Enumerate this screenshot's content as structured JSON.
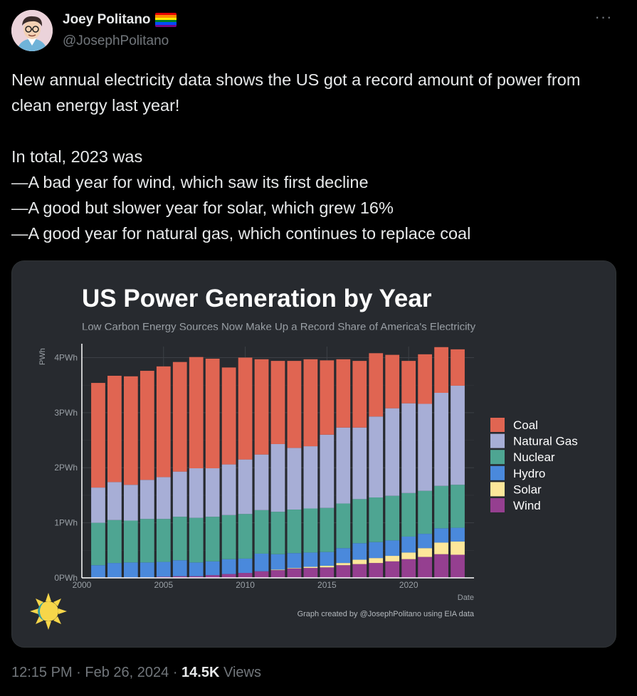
{
  "author": {
    "name": "Joey Politano",
    "handle": "@JosephPolitano",
    "flag_icon": "rainbow-flag-icon",
    "avatar_icon": "cartoon-avatar-icon"
  },
  "more_icon": "more-options-icon",
  "tweet": {
    "text": "New annual electricity data shows the US got a record amount of power from clean energy last year!\n\nIn total, 2023 was\n—A bad year for wind, which saw its first decline\n—A good but slower year for solar, which grew 16%\n—A good year for natural gas, which continues to replace coal"
  },
  "meta": {
    "time": "12:15 PM",
    "date": "Feb 26, 2024",
    "views_count": "14.5K",
    "views_label": "Views"
  },
  "colors": {
    "Coal": "#e06552",
    "Natural Gas": "#a7aed6",
    "Nuclear": "#4ea592",
    "Hydro": "#4a89dc",
    "Solar": "#fde79a",
    "Wind": "#953f90"
  },
  "chart_data": {
    "type": "bar",
    "stacked": true,
    "title": "US Power Generation by Year",
    "subtitle": "Low Carbon Energy Sources Now Make Up a Record Share of America's Electricity",
    "xlabel": "Date",
    "ylabel": "PWh",
    "ylim": [
      0,
      4.2
    ],
    "xlim": [
      2000,
      2024
    ],
    "y_ticks": [
      {
        "v": 0,
        "label": "0PWh"
      },
      {
        "v": 1,
        "label": "1PWh"
      },
      {
        "v": 2,
        "label": "2PWh"
      },
      {
        "v": 3,
        "label": "3PWh"
      },
      {
        "v": 4,
        "label": "4PWh"
      }
    ],
    "x_ticks": [
      {
        "v": 2000,
        "label": "2000"
      },
      {
        "v": 2005,
        "label": "2005"
      },
      {
        "v": 2010,
        "label": "2010"
      },
      {
        "v": 2015,
        "label": "2015"
      },
      {
        "v": 2020,
        "label": "2020"
      }
    ],
    "legend_position": "right",
    "grid": true,
    "credit": "Graph created by @JosephPolitano using EIA data",
    "categories": [
      2001,
      2002,
      2003,
      2004,
      2005,
      2006,
      2007,
      2008,
      2009,
      2010,
      2011,
      2012,
      2013,
      2014,
      2015,
      2016,
      2017,
      2018,
      2019,
      2020,
      2021,
      2022,
      2023
    ],
    "series": [
      {
        "name": "Wind",
        "values": [
          0.01,
          0.01,
          0.01,
          0.01,
          0.02,
          0.03,
          0.03,
          0.05,
          0.07,
          0.09,
          0.12,
          0.14,
          0.17,
          0.18,
          0.19,
          0.23,
          0.25,
          0.27,
          0.3,
          0.34,
          0.38,
          0.43,
          0.42
        ]
      },
      {
        "name": "Solar",
        "values": [
          0.0,
          0.0,
          0.0,
          0.0,
          0.0,
          0.0,
          0.0,
          0.0,
          0.0,
          0.0,
          0.0,
          0.01,
          0.01,
          0.02,
          0.03,
          0.04,
          0.08,
          0.09,
          0.1,
          0.12,
          0.16,
          0.21,
          0.24
        ]
      },
      {
        "name": "Hydro",
        "values": [
          0.22,
          0.26,
          0.27,
          0.27,
          0.27,
          0.29,
          0.25,
          0.25,
          0.27,
          0.26,
          0.32,
          0.28,
          0.27,
          0.26,
          0.25,
          0.27,
          0.3,
          0.29,
          0.28,
          0.29,
          0.26,
          0.26,
          0.25
        ]
      },
      {
        "name": "Nuclear",
        "values": [
          0.77,
          0.78,
          0.76,
          0.79,
          0.78,
          0.79,
          0.81,
          0.81,
          0.8,
          0.81,
          0.79,
          0.77,
          0.79,
          0.8,
          0.8,
          0.81,
          0.8,
          0.81,
          0.81,
          0.79,
          0.78,
          0.77,
          0.78
        ]
      },
      {
        "name": "Natural Gas",
        "values": [
          0.64,
          0.69,
          0.65,
          0.71,
          0.76,
          0.82,
          0.9,
          0.88,
          0.92,
          0.99,
          1.01,
          1.23,
          1.12,
          1.13,
          1.33,
          1.38,
          1.3,
          1.47,
          1.59,
          1.63,
          1.58,
          1.69,
          1.8
        ]
      },
      {
        "name": "Coal",
        "values": [
          1.9,
          1.93,
          1.97,
          1.98,
          2.01,
          1.99,
          2.02,
          1.99,
          1.76,
          1.85,
          1.73,
          1.51,
          1.58,
          1.58,
          1.35,
          1.24,
          1.21,
          1.15,
          0.97,
          0.77,
          0.9,
          0.83,
          0.66
        ]
      }
    ],
    "legend_order": [
      "Coal",
      "Natural Gas",
      "Nuclear",
      "Hydro",
      "Solar",
      "Wind"
    ]
  }
}
